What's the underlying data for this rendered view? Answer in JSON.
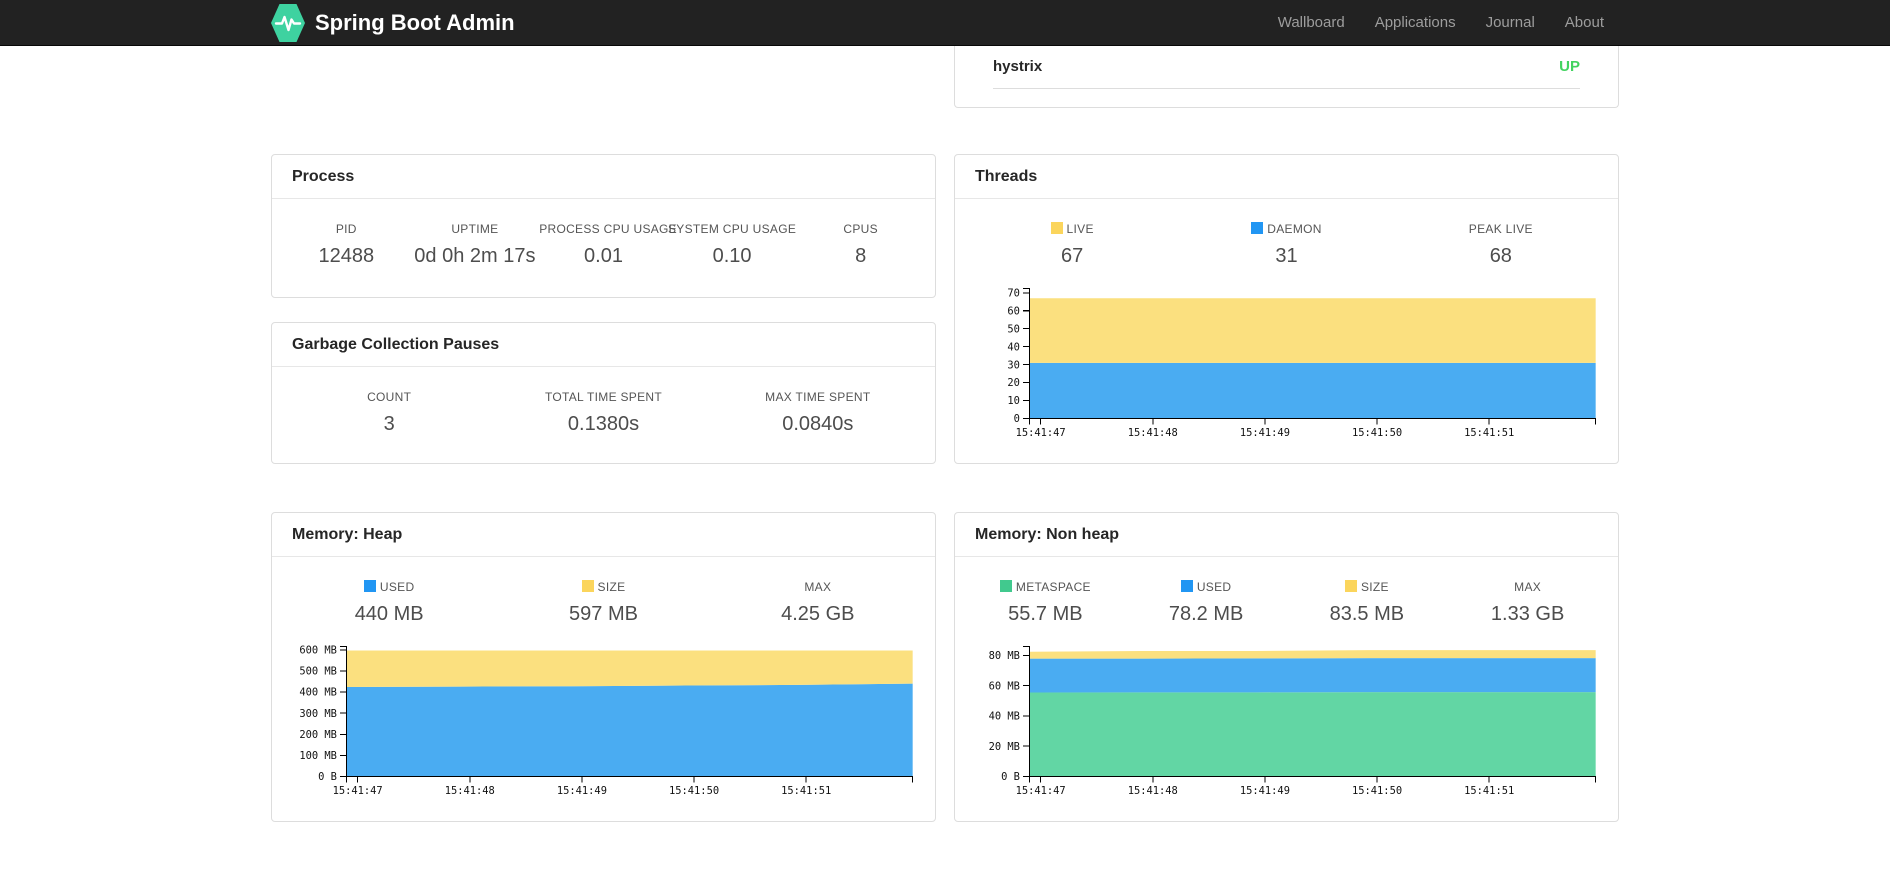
{
  "navbar": {
    "brand": "Spring Boot Admin",
    "items": [
      "Wallboard",
      "Applications",
      "Journal",
      "About"
    ]
  },
  "colors": {
    "navbar_bg": "#222222",
    "logo_green": "#3ed2a0",
    "status_up_green": "#42d35f",
    "series_blue": "#4aacf2",
    "series_yellow": "#fbe07f",
    "series_green": "#62d6a4",
    "legend_blue": "#2196f3",
    "legend_yellow": "#fbd55c",
    "legend_green": "#41c98e"
  },
  "applications": {
    "rows": [
      {
        "name": "hystrix",
        "status": "UP"
      }
    ]
  },
  "process": {
    "title": "Process",
    "metrics": [
      {
        "label": "PID",
        "value": "12488"
      },
      {
        "label": "UPTIME",
        "value": "0d 0h 2m 17s"
      },
      {
        "label": "PROCESS CPU USAGE",
        "value": "0.01"
      },
      {
        "label": "SYSTEM CPU USAGE",
        "value": "0.10"
      },
      {
        "label": "CPUS",
        "value": "8"
      }
    ]
  },
  "gc": {
    "title": "Garbage Collection Pauses",
    "metrics": [
      {
        "label": "COUNT",
        "value": "3"
      },
      {
        "label": "TOTAL TIME SPENT",
        "value": "0.1380s"
      },
      {
        "label": "MAX TIME SPENT",
        "value": "0.0840s"
      }
    ]
  },
  "threads": {
    "title": "Threads",
    "legend": [
      {
        "label": "LIVE",
        "value": "67",
        "swatch": "#fbd55c"
      },
      {
        "label": "DAEMON",
        "value": "31",
        "swatch": "#2196f3"
      },
      {
        "label": "PEAK LIVE",
        "value": "68"
      }
    ]
  },
  "memory_heap": {
    "title": "Memory: Heap",
    "legend": [
      {
        "label": "USED",
        "value": "440 MB",
        "swatch": "#2196f3"
      },
      {
        "label": "SIZE",
        "value": "597 MB",
        "swatch": "#fbd55c"
      },
      {
        "label": "MAX",
        "value": "4.25 GB"
      }
    ]
  },
  "memory_nonheap": {
    "title": "Memory: Non heap",
    "legend": [
      {
        "label": "METASPACE",
        "value": "55.7 MB",
        "swatch": "#41c98e"
      },
      {
        "label": "USED",
        "value": "78.2 MB",
        "swatch": "#2196f3"
      },
      {
        "label": "SIZE",
        "value": "83.5 MB",
        "swatch": "#fbd55c"
      },
      {
        "label": "MAX",
        "value": "1.33 GB"
      }
    ]
  },
  "chart_data": [
    {
      "id": "threads",
      "type": "area",
      "stacked": true,
      "title": "Threads",
      "x_ticks": [
        "15:41:47",
        "15:41:48",
        "15:41:49",
        "15:41:50",
        "15:41:51"
      ],
      "x_tick_pcts": [
        0.02,
        0.218,
        0.416,
        0.614,
        0.812
      ],
      "ylim": [
        0,
        72.5
      ],
      "y_ticks": [
        {
          "v": 0,
          "label": "0"
        },
        {
          "v": 10,
          "label": "10"
        },
        {
          "v": 20,
          "label": "20"
        },
        {
          "v": 30,
          "label": "30"
        },
        {
          "v": 40,
          "label": "40"
        },
        {
          "v": 50,
          "label": "50"
        },
        {
          "v": 60,
          "label": "60"
        },
        {
          "v": 70,
          "label": "70"
        }
      ],
      "legend_position": "top",
      "grid": false,
      "series": [
        {
          "name": "DAEMON",
          "color": "#4aacf2",
          "values": [
            31,
            31,
            31,
            31,
            31,
            31
          ]
        },
        {
          "name": "LIVE",
          "color": "#fbe07f",
          "values": [
            67,
            67,
            67,
            67,
            67,
            67
          ]
        }
      ],
      "values_are_stack_tops": true
    },
    {
      "id": "memory-heap",
      "type": "area",
      "stacked": true,
      "title": "Memory: Heap (MB)",
      "x_ticks": [
        "15:41:47",
        "15:41:48",
        "15:41:49",
        "15:41:50",
        "15:41:51"
      ],
      "x_tick_pcts": [
        0.02,
        0.218,
        0.416,
        0.614,
        0.812
      ],
      "ylim": [
        0,
        617
      ],
      "y_ticks": [
        {
          "v": 0,
          "label": "0 B"
        },
        {
          "v": 100,
          "label": "100 MB"
        },
        {
          "v": 200,
          "label": "200 MB"
        },
        {
          "v": 300,
          "label": "300 MB"
        },
        {
          "v": 400,
          "label": "400 MB"
        },
        {
          "v": 500,
          "label": "500 MB"
        },
        {
          "v": 600,
          "label": "600 MB"
        }
      ],
      "legend_position": "top",
      "grid": false,
      "series": [
        {
          "name": "USED",
          "color": "#4aacf2",
          "values": [
            424,
            426,
            428,
            431,
            434,
            440
          ]
        },
        {
          "name": "SIZE",
          "color": "#fbe07f",
          "values": [
            597,
            597,
            597,
            597,
            597,
            597
          ]
        }
      ],
      "values_are_stack_tops": true
    },
    {
      "id": "memory-nonheap",
      "type": "area",
      "stacked": true,
      "title": "Memory: Non heap (MB)",
      "x_ticks": [
        "15:41:47",
        "15:41:48",
        "15:41:49",
        "15:41:50",
        "15:41:51"
      ],
      "x_tick_pcts": [
        0.02,
        0.218,
        0.416,
        0.614,
        0.812
      ],
      "ylim": [
        0,
        86
      ],
      "y_ticks": [
        {
          "v": 0,
          "label": "0 B"
        },
        {
          "v": 20,
          "label": "20 MB"
        },
        {
          "v": 40,
          "label": "40 MB"
        },
        {
          "v": 60,
          "label": "60 MB"
        },
        {
          "v": 80,
          "label": "80 MB"
        }
      ],
      "legend_position": "top",
      "grid": false,
      "series": [
        {
          "name": "METASPACE",
          "color": "#62d6a4",
          "values": [
            55.5,
            55.6,
            55.6,
            55.7,
            55.7,
            55.7
          ]
        },
        {
          "name": "USED",
          "color": "#4aacf2",
          "values": [
            77.9,
            77.9,
            78.0,
            78.2,
            78.2,
            78.2
          ]
        },
        {
          "name": "SIZE",
          "color": "#fbe07f",
          "values": [
            82.4,
            82.9,
            82.9,
            83.5,
            83.5,
            83.5
          ]
        }
      ],
      "values_are_stack_tops": true
    }
  ]
}
